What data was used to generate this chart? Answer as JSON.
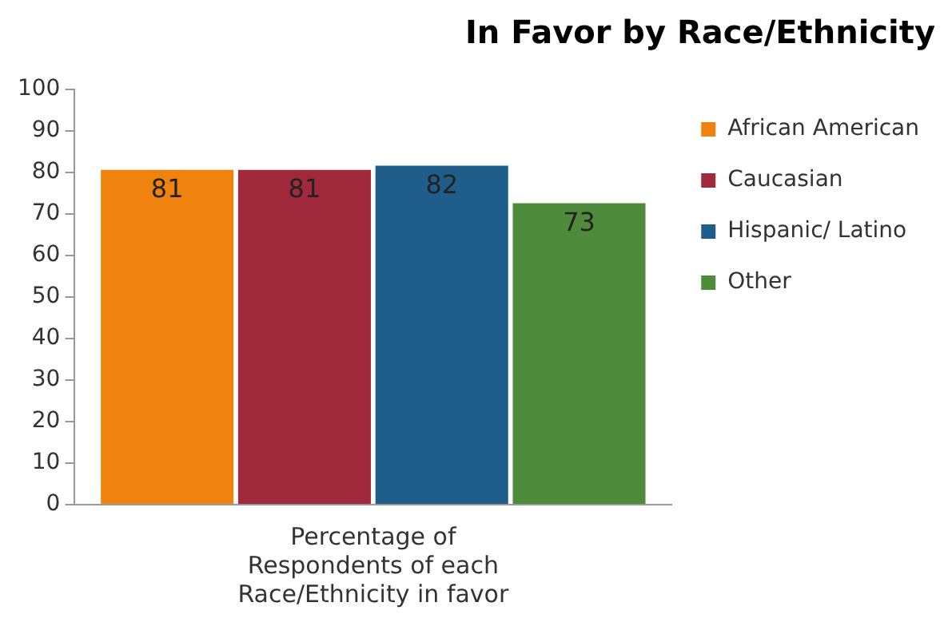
{
  "chart_data": {
    "type": "bar",
    "title": "In Favor by Race/Ethnicity",
    "categories": [
      "Percentage of Respondents of each Race/Ethnicity in favor"
    ],
    "series": [
      {
        "name": "African American",
        "color": "#f0820f",
        "values": [
          81
        ]
      },
      {
        "name": "Caucasian",
        "color": "#a02a3c",
        "values": [
          81
        ]
      },
      {
        "name": "Hispanic/ Latino",
        "color": "#1f5d8a",
        "values": [
          82
        ]
      },
      {
        "name": "Other",
        "color": "#4e8c3c",
        "values": [
          73
        ]
      }
    ],
    "ylim": [
      0,
      100
    ],
    "yticks": [
      0,
      10,
      20,
      30,
      40,
      50,
      60,
      70,
      80,
      90,
      100
    ],
    "grid": false,
    "legend": "right",
    "data_labels": true
  }
}
